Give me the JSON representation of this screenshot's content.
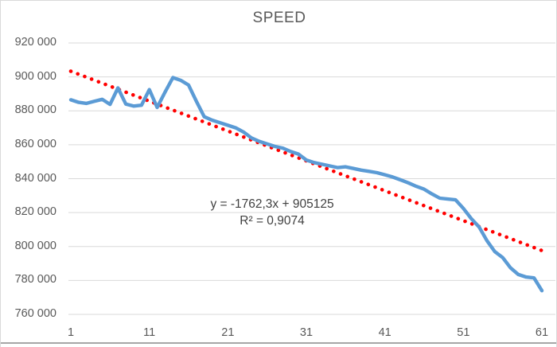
{
  "title": "SPEED",
  "annotation": {
    "equation": "y = -1762,3x + 905125",
    "r_squared": "R² = 0,9074"
  },
  "colors": {
    "series": "#5B9BD5",
    "trendline": "#FF0000",
    "gridline": "#D9D9D9",
    "axis_text": "#595959",
    "title_text": "#595959",
    "equation_text": "#404040",
    "frame_border": "#D9D9D9",
    "bottom_rule": "#A6A6A6"
  },
  "chart_data": {
    "type": "line",
    "title": "SPEED",
    "xlabel": "",
    "ylabel": "",
    "xlim": [
      1,
      61
    ],
    "ylim": [
      760000,
      920000
    ],
    "x_ticks": [
      1,
      11,
      21,
      31,
      41,
      51,
      61
    ],
    "y_tick_values": [
      920000,
      900000,
      880000,
      860000,
      840000,
      820000,
      800000,
      780000,
      760000
    ],
    "y_tick_labels": [
      "920 000",
      "900 000",
      "880 000",
      "860 000",
      "840 000",
      "820 000",
      "800 000",
      "780 000",
      "760 000"
    ],
    "grid": "horizontal",
    "legend": "none",
    "x": [
      1,
      2,
      3,
      4,
      5,
      6,
      7,
      8,
      9,
      10,
      11,
      12,
      13,
      14,
      15,
      16,
      17,
      18,
      19,
      20,
      21,
      22,
      23,
      24,
      25,
      26,
      27,
      28,
      29,
      30,
      31,
      32,
      33,
      34,
      35,
      36,
      37,
      38,
      39,
      40,
      41,
      42,
      43,
      44,
      45,
      46,
      47,
      48,
      49,
      50,
      51,
      52,
      53,
      54,
      55,
      56,
      57,
      58,
      59,
      60,
      61
    ],
    "series": [
      {
        "name": "SPEED",
        "values": [
          886500,
          885000,
          884400,
          885600,
          886800,
          883800,
          893500,
          884000,
          882800,
          883300,
          892500,
          882000,
          891000,
          899600,
          898000,
          895200,
          885500,
          876500,
          874500,
          873000,
          871500,
          870000,
          867500,
          864000,
          862000,
          860500,
          859000,
          858000,
          856000,
          854500,
          851000,
          849500,
          848500,
          847500,
          846500,
          847000,
          846000,
          845000,
          844300,
          843500,
          842300,
          841000,
          839300,
          837500,
          835500,
          833800,
          831000,
          828500,
          828000,
          827500,
          822500,
          816500,
          811500,
          803500,
          797000,
          793500,
          787500,
          783500,
          782000,
          781500,
          774000
        ]
      }
    ],
    "trendline": {
      "type": "linear",
      "slope": -1762.3,
      "intercept": 905125,
      "equation": "y = -1762,3x + 905125",
      "r2": 0.9074,
      "style": "dotted"
    }
  }
}
